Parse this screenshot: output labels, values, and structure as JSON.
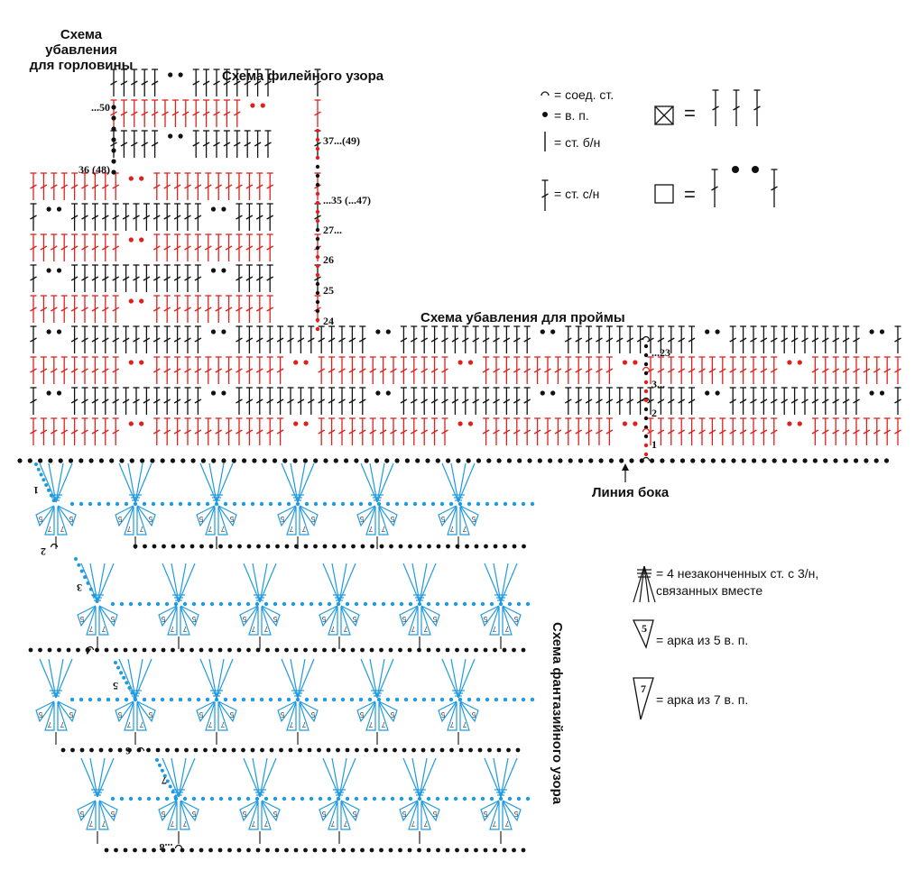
{
  "titles": {
    "neck_decrease": "Схема\nубавления\nдля горловины",
    "filet": "Схема филейного узора",
    "armhole": "Схема убавления для проймы",
    "fancy": "Схема фантазийного узора",
    "side_line": "Линия бока"
  },
  "legend": {
    "slip": "= соед. ст.",
    "chain": "= в. п.",
    "sc": "= ст. б/н",
    "dc": "= ст. с/н",
    "cluster": "= 4 незаконченных ст. с 3/н,\nсвязанных вместе",
    "arch5": "= арка из 5 в. п.",
    "arch7": "= арка из 7 в. п.",
    "arch5_num": "5",
    "arch7_num": "7",
    "eq": "="
  },
  "row_labels": {
    "top_left": [
      "...50",
      "36 (48)"
    ],
    "filet_right": [
      "37...(49)",
      "...35 (...47)",
      "27...",
      "26",
      "25",
      "24"
    ],
    "armhole": [
      "...23",
      "3...",
      "2",
      "1"
    ],
    "fancy": [
      "1",
      "2",
      "3",
      "4",
      "5",
      "6",
      "7",
      "...8"
    ]
  },
  "colors": {
    "black": "#111111",
    "red": "#e0201c",
    "blue": "#1f9ae0"
  }
}
